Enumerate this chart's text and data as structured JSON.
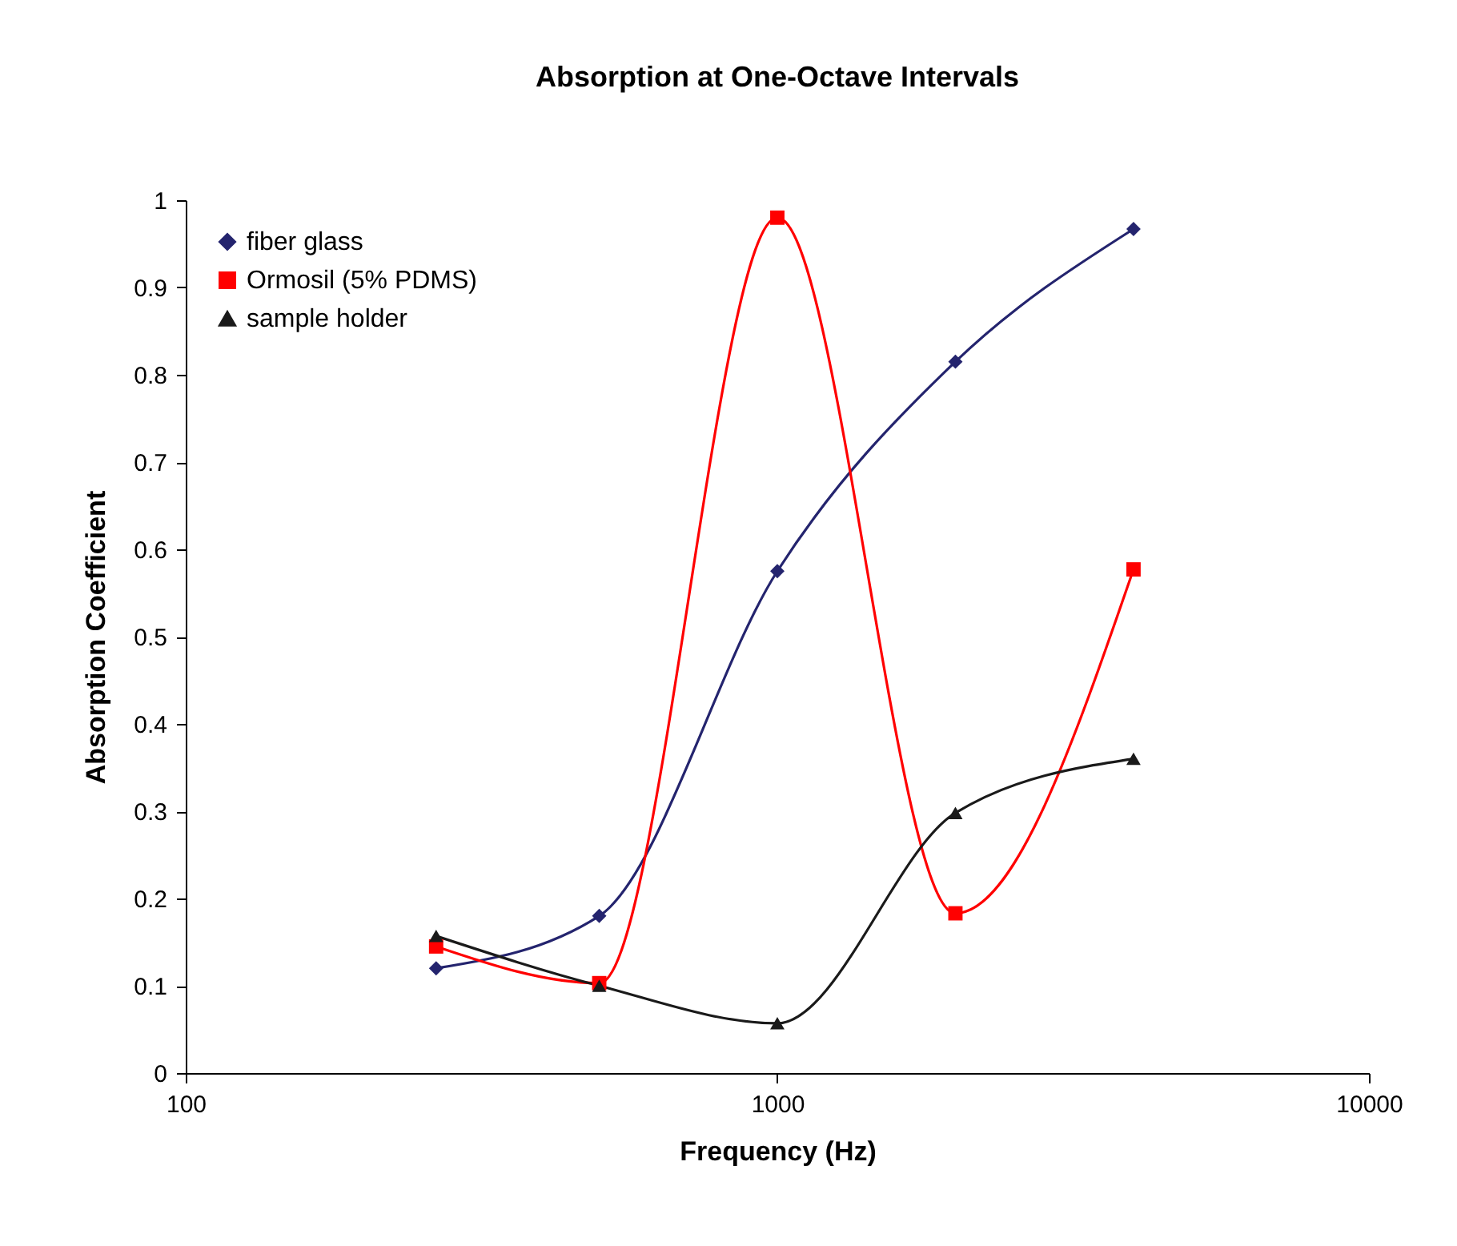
{
  "chart_data": {
    "type": "line",
    "title": "Absorption at One-Octave Intervals",
    "xlabel": "Frequency (Hz)",
    "ylabel": "Absorption Coefficient",
    "x": [
      265,
      500,
      1000,
      2000,
      4000
    ],
    "series": [
      {
        "name": "fiber glass",
        "color": "#24246e",
        "marker": "diamond",
        "values": [
          0.12,
          0.18,
          0.575,
          0.815,
          0.967
        ]
      },
      {
        "name": "Ormosil (5% PDMS)",
        "color": "#ff0000",
        "marker": "square",
        "values": [
          0.145,
          0.103,
          0.98,
          0.183,
          0.577
        ]
      },
      {
        "name": "sample holder",
        "color": "#1a1a1a",
        "marker": "triangle",
        "values": [
          0.157,
          0.1,
          0.057,
          0.298,
          0.36
        ]
      }
    ],
    "log": "x",
    "xlim": [
      100,
      10000
    ],
    "xticks": [
      100,
      1000,
      10000
    ],
    "ylim": [
      0,
      1
    ],
    "yticks": [
      0,
      0.1,
      0.2,
      0.3,
      0.4,
      0.5,
      0.6,
      0.7,
      0.8,
      0.9,
      1
    ],
    "grid": false,
    "legend": "top left",
    "line_style": "solid"
  }
}
